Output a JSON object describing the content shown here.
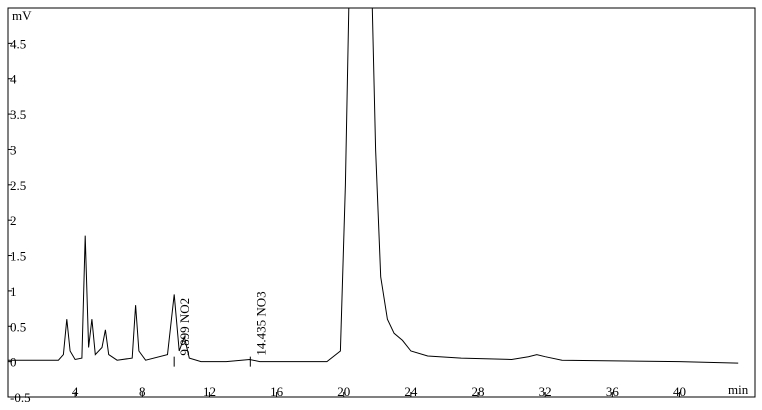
{
  "chart_data": {
    "type": "line",
    "y_label": "mV",
    "x_label": "min",
    "x": [
      0,
      3,
      3.3,
      3.5,
      3.7,
      4,
      4.4,
      4.6,
      4.8,
      5,
      5.2,
      5.6,
      5.8,
      6,
      6.5,
      7.4,
      7.6,
      7.8,
      8.2,
      9.5,
      9.9,
      10.2,
      10.5,
      10.8,
      11.5,
      13,
      14.4,
      15,
      19,
      19.8,
      20.1,
      20.3,
      21.7,
      21.9,
      22.2,
      22.6,
      23,
      23.5,
      24,
      25,
      27,
      30,
      31,
      31.5,
      32,
      33,
      40,
      43.5
    ],
    "values": [
      0.02,
      0.02,
      0.1,
      0.6,
      0.15,
      0.03,
      0.05,
      1.78,
      0.2,
      0.6,
      0.1,
      0.2,
      0.45,
      0.1,
      0.02,
      0.05,
      0.8,
      0.15,
      0.02,
      0.1,
      0.95,
      0.15,
      0.35,
      0.05,
      0,
      0,
      0.03,
      0,
      0,
      0.15,
      2.5,
      5,
      5,
      3,
      1.2,
      0.6,
      0.4,
      0.3,
      0.15,
      0.08,
      0.05,
      0.03,
      0.07,
      0.1,
      0.07,
      0.02,
      0,
      -0.02
    ],
    "color": "#000000",
    "xlim": [
      0,
      44.5
    ],
    "ylim": [
      -0.5,
      5
    ],
    "xticks": [
      4,
      8,
      12,
      16,
      20,
      24,
      28,
      32,
      36,
      40
    ],
    "yticks": [
      -0.5,
      0,
      0.5,
      1,
      1.5,
      2,
      2.5,
      3,
      3.5,
      4,
      4.5
    ],
    "annotations": [
      {
        "text": "9.899 NO2",
        "x": 9.899
      },
      {
        "text": "14.435 NO3",
        "x": 14.435
      }
    ]
  }
}
